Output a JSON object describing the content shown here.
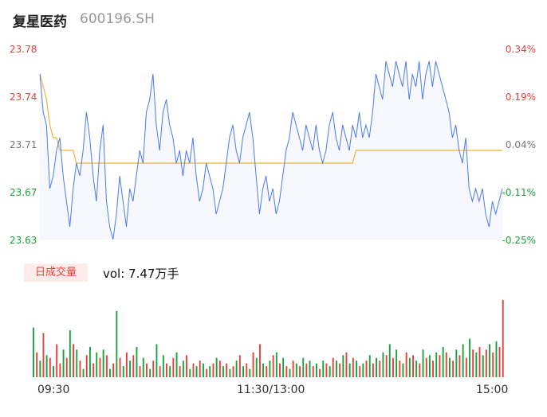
{
  "header": {
    "name": "复星医药",
    "code": "600196.SH"
  },
  "volume_panel": {
    "badge": "日成交量",
    "vol_label": "vol: 7.47万手"
  },
  "colors": {
    "up": "#e8413b",
    "down": "#1aa33a",
    "flat": "#777777",
    "price_line": "#4b7bec",
    "avg_line": "#f0b43c",
    "area_fill": "#f6f8fd"
  },
  "chart_data": {
    "type": "line",
    "y_ticks_left": [
      {
        "label": "23.78",
        "value": 23.78,
        "color": "up"
      },
      {
        "label": "23.74",
        "value": 23.74,
        "color": "up"
      },
      {
        "label": "23.71",
        "value": 23.705,
        "color": "flat"
      },
      {
        "label": "23.67",
        "value": 23.67,
        "color": "down"
      },
      {
        "label": "23.63",
        "value": 23.63,
        "color": "down"
      }
    ],
    "y_ticks_right": [
      {
        "label": "0.34%",
        "color": "up"
      },
      {
        "label": "0.19%",
        "color": "up"
      },
      {
        "label": "0.04%",
        "color": "flat"
      },
      {
        "label": "-0.11%",
        "color": "down"
      },
      {
        "label": "-0.25%",
        "color": "down"
      }
    ],
    "ylim": [
      23.63,
      23.78
    ],
    "x_ticks": [
      "09:30",
      "11:30/13:00",
      "15:00"
    ],
    "series": [
      {
        "values": [
          23.76,
          23.73,
          23.72,
          23.67,
          23.68,
          23.7,
          23.71,
          23.68,
          23.66,
          23.64,
          23.67,
          23.69,
          23.68,
          23.7,
          23.73,
          23.71,
          23.68,
          23.66,
          23.7,
          23.72,
          23.66,
          23.64,
          23.63,
          23.65,
          23.68,
          23.66,
          23.64,
          23.67,
          23.66,
          23.68,
          23.7,
          23.69,
          23.73,
          23.74,
          23.76,
          23.72,
          23.7,
          23.73,
          23.74,
          23.72,
          23.71,
          23.69,
          23.7,
          23.68,
          23.7,
          23.69,
          23.71,
          23.68,
          23.66,
          23.67,
          23.69,
          23.68,
          23.67,
          23.65,
          23.66,
          23.67,
          23.69,
          23.71,
          23.72,
          23.7,
          23.69,
          23.71,
          23.72,
          23.73,
          23.71,
          23.68,
          23.65,
          23.67,
          23.68,
          23.66,
          23.67,
          23.65,
          23.66,
          23.68,
          23.7,
          23.71,
          23.73,
          23.72,
          23.71,
          23.7,
          23.72,
          23.71,
          23.7,
          23.72,
          23.7,
          23.69,
          23.7,
          23.72,
          23.73,
          23.71,
          23.7,
          23.72,
          23.71,
          23.7,
          23.72,
          23.71,
          23.73,
          23.71,
          23.72,
          23.71,
          23.73,
          23.76,
          23.75,
          23.74,
          23.77,
          23.76,
          23.75,
          23.77,
          23.76,
          23.75,
          23.77,
          23.74,
          23.76,
          23.75,
          23.77,
          23.74,
          23.76,
          23.77,
          23.75,
          23.77,
          23.76,
          23.75,
          23.74,
          23.73,
          23.71,
          23.72,
          23.7,
          23.69,
          23.71,
          23.67,
          23.66,
          23.67,
          23.66,
          23.67,
          23.65,
          23.64,
          23.66,
          23.65,
          23.66,
          23.67
        ],
        "color": "price_line"
      },
      {
        "values": [
          23.76,
          23.75,
          23.74,
          23.72,
          23.71,
          23.71,
          23.7,
          23.7,
          23.7,
          23.7,
          23.7,
          23.69,
          23.69,
          23.69,
          23.69,
          23.69,
          23.69,
          23.69,
          23.69,
          23.69,
          23.69,
          23.69,
          23.69,
          23.69,
          23.69,
          23.69,
          23.69,
          23.69,
          23.69,
          23.69,
          23.69,
          23.69,
          23.69,
          23.69,
          23.69,
          23.69,
          23.69,
          23.69,
          23.69,
          23.69,
          23.69,
          23.69,
          23.69,
          23.69,
          23.69,
          23.69,
          23.69,
          23.69,
          23.69,
          23.69,
          23.69,
          23.69,
          23.69,
          23.69,
          23.69,
          23.69,
          23.69,
          23.69,
          23.69,
          23.69,
          23.69,
          23.69,
          23.69,
          23.69,
          23.69,
          23.69,
          23.69,
          23.69,
          23.69,
          23.69,
          23.69,
          23.69,
          23.69,
          23.69,
          23.69,
          23.69,
          23.69,
          23.69,
          23.69,
          23.69,
          23.69,
          23.69,
          23.69,
          23.69,
          23.69,
          23.69,
          23.69,
          23.69,
          23.69,
          23.69,
          23.69,
          23.69,
          23.69,
          23.69,
          23.69,
          23.7,
          23.7,
          23.7,
          23.7,
          23.7,
          23.7,
          23.7,
          23.7,
          23.7,
          23.7,
          23.7,
          23.7,
          23.7,
          23.7,
          23.7,
          23.7,
          23.7,
          23.7,
          23.7,
          23.7,
          23.7,
          23.7,
          23.7,
          23.7,
          23.7,
          23.7,
          23.7,
          23.7,
          23.7,
          23.7,
          23.7,
          23.7,
          23.7,
          23.7,
          23.7,
          23.7,
          23.7,
          23.7,
          23.7,
          23.7,
          23.7,
          23.7,
          23.7,
          23.7,
          23.7
        ],
        "color": "avg_line"
      }
    ],
    "volume": {
      "values": [
        18,
        9,
        6,
        16,
        8,
        7,
        4,
        12,
        5,
        10,
        7,
        17,
        12,
        10,
        6,
        3,
        8,
        11,
        5,
        9,
        7,
        10,
        8,
        3,
        5,
        24,
        7,
        4,
        9,
        6,
        8,
        11,
        4,
        7,
        5,
        3,
        6,
        12,
        4,
        8,
        5,
        4,
        7,
        9,
        4,
        6,
        8,
        3,
        5,
        4,
        6,
        5,
        3,
        4,
        5,
        7,
        6,
        4,
        5,
        3,
        4,
        6,
        8,
        4,
        5,
        3,
        9,
        7,
        12,
        5,
        4,
        6,
        8,
        9,
        5,
        7,
        4,
        3,
        6,
        5,
        4,
        7,
        5,
        6,
        4,
        5,
        3,
        6,
        5,
        4,
        7,
        6,
        5,
        8,
        9,
        5,
        7,
        6,
        4,
        5,
        6,
        8,
        5,
        7,
        6,
        9,
        8,
        12,
        7,
        10,
        6,
        5,
        9,
        7,
        8,
        6,
        5,
        10,
        7,
        8,
        6,
        9,
        8,
        11,
        9,
        7,
        6,
        10,
        8,
        12,
        7,
        14,
        10,
        9,
        11,
        8,
        10,
        12,
        9,
        13,
        11,
        28
      ],
      "colors": [
        "down",
        "up",
        "down",
        "up",
        "down",
        "up",
        "down",
        "up",
        "up",
        "down",
        "up",
        "down",
        "up",
        "down",
        "up",
        "down",
        "up",
        "down",
        "up",
        "down",
        "up",
        "down",
        "up",
        "down",
        "up",
        "down",
        "up",
        "down",
        "up",
        "down",
        "up",
        "down",
        "up",
        "down",
        "up",
        "down",
        "up",
        "down",
        "up",
        "down",
        "up",
        "down",
        "up",
        "down",
        "up",
        "down",
        "up",
        "down",
        "up",
        "down",
        "up",
        "down",
        "up",
        "down",
        "up",
        "down",
        "up",
        "down",
        "up",
        "down",
        "up",
        "down",
        "up",
        "down",
        "up",
        "down",
        "up",
        "down",
        "up",
        "down",
        "up",
        "down",
        "up",
        "down",
        "up",
        "down",
        "up",
        "down",
        "up",
        "down",
        "up",
        "down",
        "up",
        "down",
        "up",
        "down",
        "up",
        "down",
        "up",
        "down",
        "up",
        "down",
        "up",
        "down",
        "up",
        "down",
        "up",
        "down",
        "up",
        "down",
        "up",
        "down",
        "up",
        "down",
        "up",
        "down",
        "up",
        "down",
        "up",
        "down",
        "up",
        "down",
        "up",
        "down",
        "up",
        "down",
        "up",
        "down",
        "up",
        "down",
        "up",
        "down",
        "up",
        "down",
        "up",
        "down",
        "up",
        "down",
        "up",
        "down",
        "up",
        "down",
        "up",
        "down",
        "up",
        "down",
        "up",
        "down",
        "up",
        "down",
        "up",
        "up"
      ],
      "ylim": [
        0,
        30
      ]
    }
  }
}
